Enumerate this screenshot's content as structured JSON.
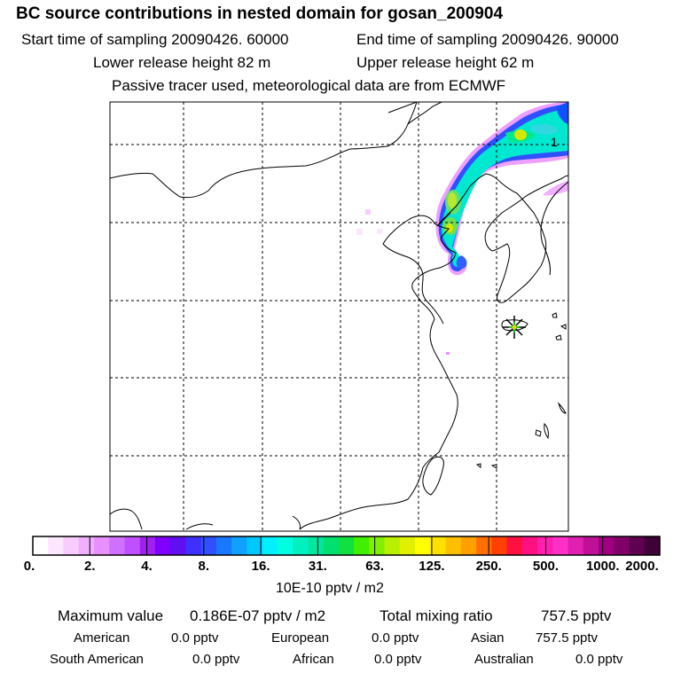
{
  "header": {
    "title": "BC  source contributions in nested domain for gosan_200904",
    "start_time": "Start time of sampling 20090426. 60000",
    "end_time": "End time of sampling 20090426. 90000",
    "lower_release": "Lower release height   82 m",
    "upper_release": "Upper release height   62 m",
    "tracer_note": "Passive tracer used, meteorological data are from ECMWF"
  },
  "map": {
    "contour_label": "1",
    "receptor_marker": "star-marker",
    "plume_color_core": "#d6e800",
    "plume_color_mid": "#00e8d0",
    "plume_color_edge": "#e040ff"
  },
  "legend": {
    "tick_labels": [
      "0.",
      "2.",
      "4.",
      "8.",
      "16.",
      "31.",
      "63.",
      "125.",
      "250.",
      "500.",
      "1000.",
      "2000."
    ],
    "units": "10E-10 pptv / m2",
    "colors": [
      "#ffffff",
      "#fde6ff",
      "#f8ccff",
      "#f0b0ff",
      "#e890ff",
      "#d070ff",
      "#c050ff",
      "#a020f0",
      "#8000ff",
      "#6010f0",
      "#4030ff",
      "#3050ff",
      "#1878ff",
      "#10a0ff",
      "#00c8ff",
      "#00f0ff",
      "#00ffe0",
      "#00f0c0",
      "#00e8a0",
      "#00e070",
      "#10e040",
      "#40f000",
      "#80f000",
      "#b8f000",
      "#e0f000",
      "#ffff00",
      "#ffe000",
      "#ffc000",
      "#ffa000",
      "#ff7000",
      "#ff4000",
      "#ff1040",
      "#ff1080",
      "#ff20b0",
      "#ff30c8",
      "#e020b0",
      "#c01098",
      "#a00080",
      "#800068",
      "#600050",
      "#400038"
    ]
  },
  "stats": {
    "max_label": "Maximum value",
    "max_value": "0.186E-07 pptv / m2",
    "total_label": "Total mixing ratio",
    "total_value": "757.5 pptv",
    "regions": [
      {
        "name": "American",
        "value": "0.0 pptv"
      },
      {
        "name": "European",
        "value": "0.0 pptv"
      },
      {
        "name": "Asian",
        "value": "757.5 pptv"
      },
      {
        "name": "South American",
        "value": "0.0 pptv"
      },
      {
        "name": "African",
        "value": "0.0 pptv"
      },
      {
        "name": "Australian",
        "value": "0.0 pptv"
      }
    ]
  }
}
